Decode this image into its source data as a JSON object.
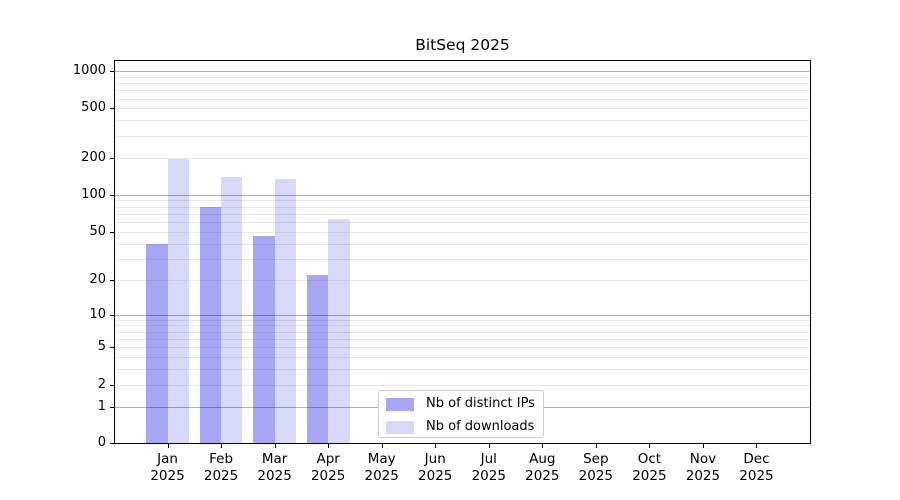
{
  "title": "BitSeq 2025",
  "chart_data": {
    "type": "bar",
    "title": "BitSeq 2025",
    "categories": [
      "Jan",
      "Feb",
      "Mar",
      "Apr",
      "May",
      "Jun",
      "Jul",
      "Aug",
      "Sep",
      "Oct",
      "Nov",
      "Dec"
    ],
    "x_year_label": "2025",
    "series": [
      {
        "name": "Nb of distinct IPs",
        "color": "#a6a6f4",
        "values": [
          40,
          80,
          46,
          22,
          0,
          0,
          0,
          0,
          0,
          0,
          0,
          0
        ]
      },
      {
        "name": "Nb of downloads",
        "color": "#d8d8f9",
        "values": [
          195,
          140,
          134,
          63,
          0,
          0,
          0,
          0,
          0,
          0,
          0,
          0
        ]
      }
    ],
    "y_scale": "log10(1+v)",
    "y_tick_values": [
      0,
      1,
      2,
      5,
      10,
      20,
      50,
      100,
      200,
      500,
      1000
    ],
    "y_major_gridlines": [
      1,
      10,
      100,
      1000
    ],
    "y_minor_gridlines": [
      2,
      3,
      4,
      5,
      6,
      7,
      8,
      9,
      20,
      30,
      40,
      50,
      60,
      70,
      80,
      90,
      200,
      300,
      400,
      500,
      600,
      700,
      800,
      900
    ],
    "ylim": [
      0,
      1230
    ],
    "grid": true,
    "legend_position": "lower center",
    "colors": {
      "major_grid": "#b0b0b0",
      "minor_grid": "#e9e9e9",
      "axis": "#000000",
      "background": "#ffffff",
      "text": "#000000"
    }
  }
}
